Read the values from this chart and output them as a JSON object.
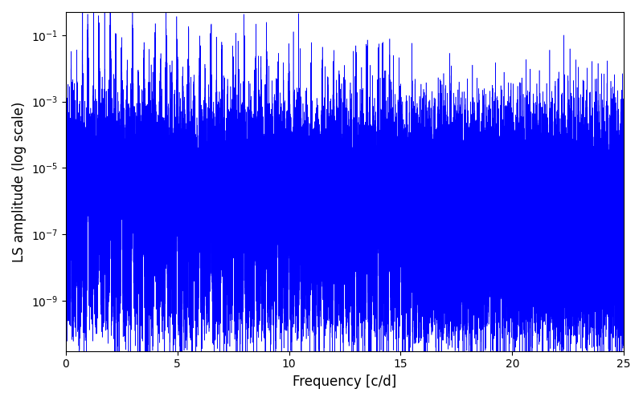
{
  "xlabel": "Frequency [c/d]",
  "ylabel": "LS amplitude (log scale)",
  "xlim": [
    0,
    25
  ],
  "ylim": [
    3e-11,
    0.5
  ],
  "line_color": "#0000ff",
  "linewidth": 0.4,
  "figsize": [
    8.0,
    5.0
  ],
  "dpi": 100,
  "yscale": "log",
  "background_color": "#ffffff",
  "seed": 42,
  "n_points": 100000,
  "freq_max": 25.0
}
